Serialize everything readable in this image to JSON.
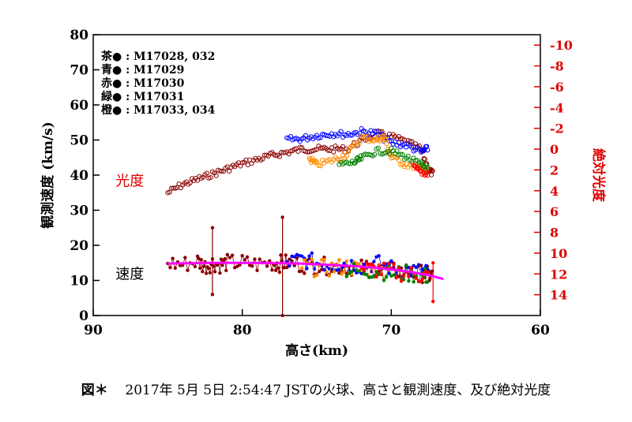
{
  "caption": {
    "prefix": "図＊",
    "text": "2017年 5月 5日 2:54:47 JSTの火球、高さと観測速度、及び絶対光度"
  },
  "chart_data": {
    "type": "scatter",
    "xlabel": "高さ(km)",
    "ylabel": "観測速度 (km/s)",
    "y2label": "絶対光度",
    "xlim": [
      90,
      60
    ],
    "ylim": [
      0,
      80
    ],
    "y2lim": [
      16,
      -11
    ],
    "xticks": [
      90,
      80,
      70,
      60
    ],
    "yticks": [
      0,
      10,
      20,
      30,
      40,
      50,
      60,
      70,
      80
    ],
    "y2ticks": [
      -10,
      -8,
      -6,
      -4,
      -2,
      0,
      2,
      4,
      6,
      8,
      10,
      12,
      14
    ],
    "annotations": [
      {
        "text": "光度",
        "color": "#e00000",
        "x": 88.5,
        "y": 38.5
      },
      {
        "text": "速度",
        "color": "#000000",
        "x": 88.5,
        "y": 12
      }
    ],
    "legend": {
      "position": "top-left",
      "entries": [
        {
          "label": "茶●",
          "value": "M17028, 032",
          "color": "#8b0000"
        },
        {
          "label": "青●",
          "value": "M17029",
          "color": "#0000ff"
        },
        {
          "label": "赤●",
          "value": "M17030",
          "color": "#ff0000"
        },
        {
          "label": "緑●",
          "value": "M17031",
          "color": "#008000"
        },
        {
          "label": "橙●",
          "value": "M17033, 034",
          "color": "#ff8c00"
        }
      ]
    },
    "magnitude_series": [
      {
        "name": "M17028, 032",
        "color": "#8b0000",
        "x": [
          85,
          84,
          83,
          82,
          81,
          80,
          79,
          78,
          77,
          76,
          75,
          74,
          73,
          72,
          71,
          70,
          69,
          68,
          67.5,
          67.2
        ],
        "mag": [
          4.2,
          3.4,
          2.9,
          2.4,
          1.9,
          1.4,
          1.0,
          0.6,
          0.3,
          0.0,
          0.0,
          0.0,
          0.0,
          -0.8,
          -1.5,
          -1.2,
          -0.7,
          0.0,
          2.0,
          2.4
        ]
      },
      {
        "name": "M17029",
        "color": "#0000ff",
        "x": [
          77,
          76,
          75,
          74,
          73,
          72,
          71,
          70,
          69,
          68,
          67.5
        ],
        "mag": [
          -0.9,
          -1.0,
          -1.3,
          -1.5,
          -1.4,
          -1.7,
          -1.5,
          -0.6,
          -0.4,
          0.3,
          -0.1
        ]
      },
      {
        "name": "M17033, 034",
        "color": "#ff8c00",
        "x": [
          75.5,
          75,
          74,
          73,
          72,
          71,
          70.5,
          70,
          69,
          68,
          67.5
        ],
        "mag": [
          0.9,
          1.5,
          1.1,
          0.5,
          -1.1,
          -0.9,
          -1.2,
          0.8,
          1.5,
          1.8,
          2.0
        ]
      },
      {
        "name": "M17031",
        "color": "#008000",
        "x": [
          73.5,
          72.5,
          72,
          71,
          70,
          69,
          68,
          67.5
        ],
        "mag": [
          1.5,
          1.3,
          0.9,
          0.2,
          0.2,
          0.8,
          1.5,
          1.9
        ]
      },
      {
        "name": "M17030",
        "color": "#ff0000",
        "x": [
          68.5,
          68,
          67.5
        ],
        "mag": [
          1.8,
          2.2,
          2.4
        ]
      }
    ],
    "velocity_series": [
      {
        "name": "M17028, 032",
        "color": "#8b0000",
        "x": [
          85,
          84,
          83,
          82.5,
          82,
          81.5,
          81,
          80,
          79,
          78,
          77.5,
          77,
          76,
          75,
          74,
          73,
          72,
          71,
          70,
          69,
          68,
          67.5,
          67.2
        ],
        "y": [
          15,
          14.5,
          15.5,
          14,
          15,
          14.5,
          15,
          15,
          14.5,
          15,
          14.8,
          15,
          14.5,
          14.2,
          14,
          14,
          13.5,
          13.5,
          13,
          12.5,
          12,
          11.5,
          11
        ]
      },
      {
        "name": "M17029",
        "color": "#0000ff",
        "x": [
          77,
          76,
          75,
          74,
          73,
          72,
          71,
          70,
          69,
          68,
          67.5
        ],
        "y": [
          15,
          16,
          15,
          14.5,
          15,
          14,
          15,
          13.5,
          13,
          12.5,
          12
        ]
      },
      {
        "name": "M17033, 034",
        "color": "#ff8c00",
        "x": [
          76,
          75,
          74,
          73,
          72,
          71,
          70
        ],
        "y": [
          14,
          13.5,
          13.5,
          14,
          13,
          13,
          12.5
        ]
      },
      {
        "name": "M17031",
        "color": "#008000",
        "x": [
          73,
          72,
          71,
          70,
          69,
          68,
          67.5
        ],
        "y": [
          13,
          12.5,
          13,
          12,
          12,
          11.5,
          11
        ]
      },
      {
        "name": "M17030",
        "color": "#ff0000",
        "x": [
          72,
          71,
          70,
          69,
          68,
          67.5
        ],
        "y": [
          13.5,
          13,
          12.5,
          12,
          11.5,
          11
        ]
      }
    ],
    "velocity_spikes": [
      {
        "color": "#8b0000",
        "x": 82,
        "from": 6,
        "to": 25
      },
      {
        "color": "#8b0000",
        "x": 77.3,
        "from": 0,
        "to": 28
      },
      {
        "color": "#ff0000",
        "x": 67.2,
        "from": 4,
        "to": 15
      }
    ],
    "fit_line": {
      "color": "#ff00ff",
      "x": [
        85,
        82,
        79,
        76,
        73,
        71,
        69,
        67.5,
        66.5
      ],
      "y": [
        14.8,
        15,
        15,
        14.8,
        14.2,
        13.6,
        12.6,
        11.5,
        10.4
      ]
    }
  }
}
